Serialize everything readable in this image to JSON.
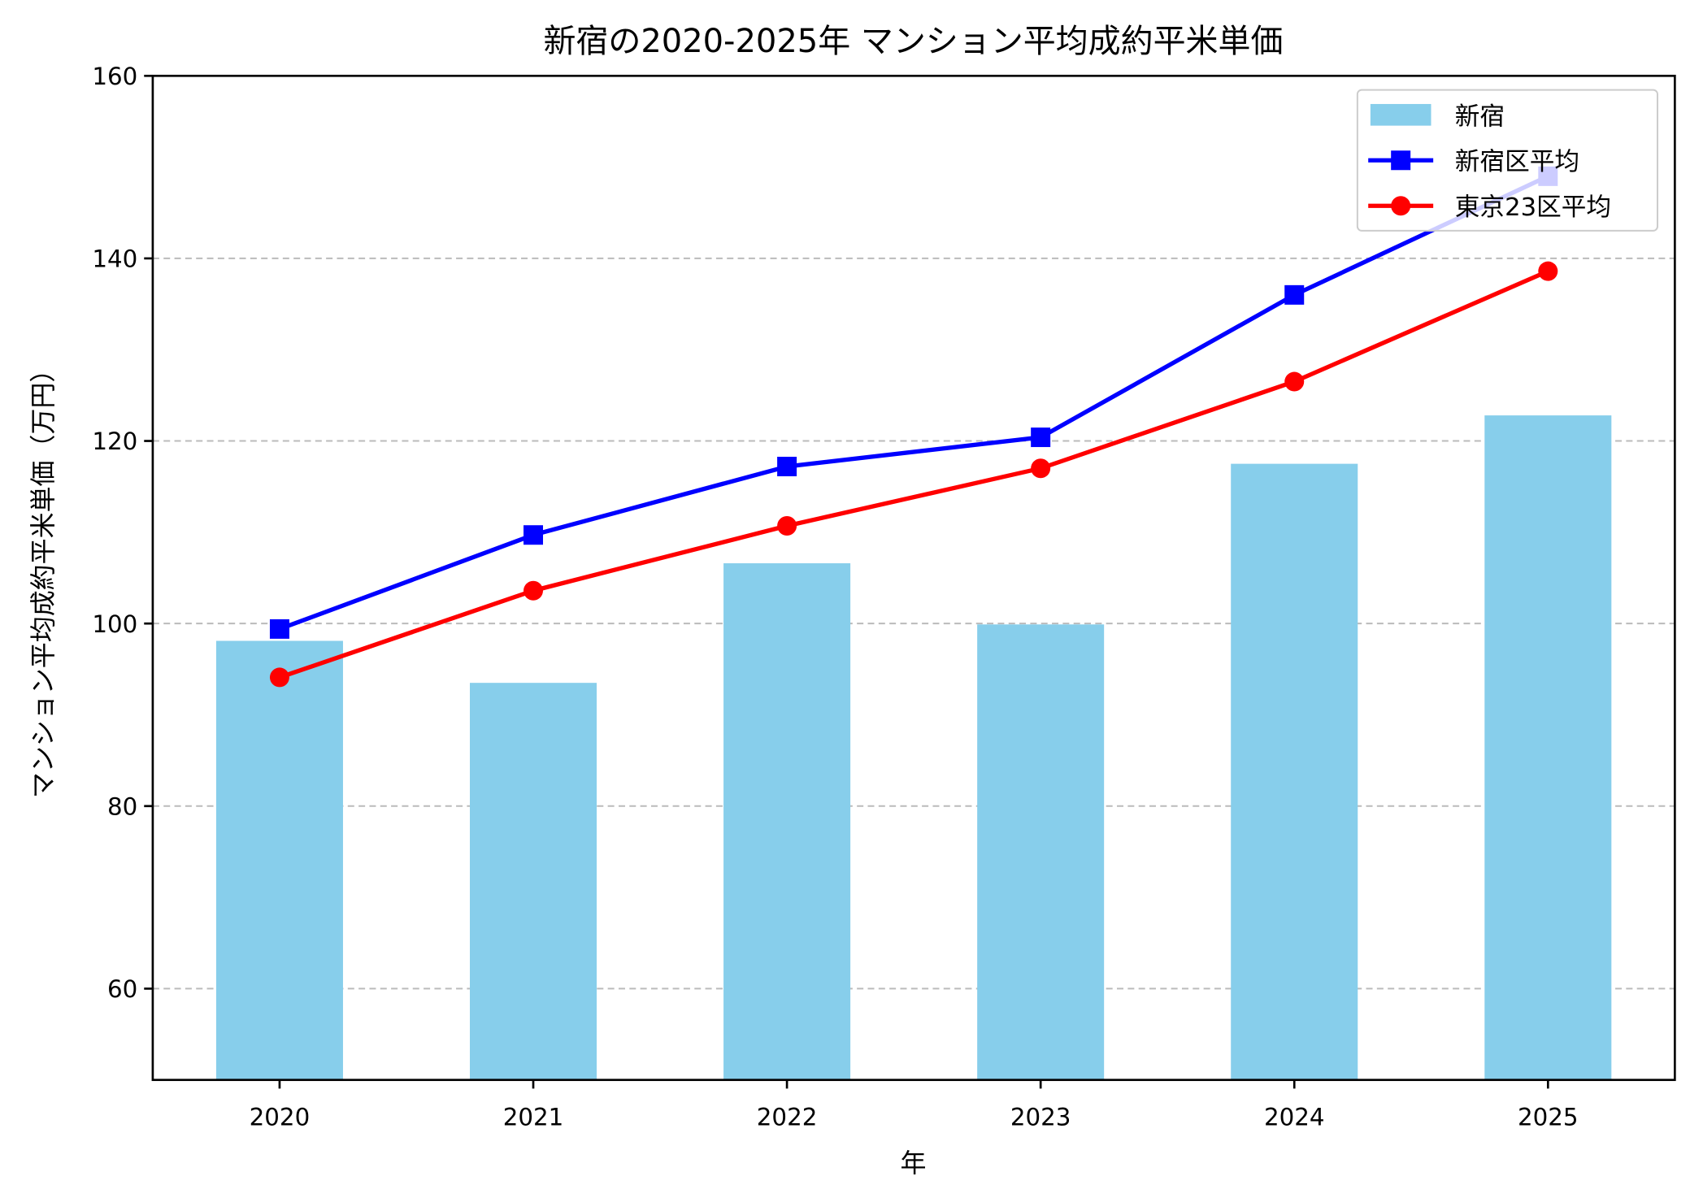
{
  "chart_data": {
    "type": "bar+line",
    "title": "新宿の2020-2025年 マンション平均成約平米単価",
    "xlabel": "年",
    "ylabel": "マンション平均成約平米単価（万円）",
    "categories": [
      "2020",
      "2021",
      "2022",
      "2023",
      "2024",
      "2025"
    ],
    "ylim": [
      50,
      160
    ],
    "yticks": [
      60,
      80,
      100,
      120,
      140,
      160
    ],
    "grid": "y-dashed",
    "legend_position": "top-right",
    "series": [
      {
        "name": "新宿",
        "type": "bar",
        "color": "#87ceeb",
        "values": [
          98.1,
          93.5,
          106.6,
          99.9,
          117.5,
          122.8
        ]
      },
      {
        "name": "新宿区平均",
        "type": "line",
        "marker": "square",
        "color": "#0000ff",
        "values": [
          99.4,
          109.7,
          117.2,
          120.4,
          136.0,
          149.0
        ]
      },
      {
        "name": "東京23区平均",
        "type": "line",
        "marker": "circle",
        "color": "#ff0000",
        "values": [
          94.1,
          103.6,
          110.7,
          117.0,
          126.5,
          138.6
        ]
      }
    ]
  }
}
